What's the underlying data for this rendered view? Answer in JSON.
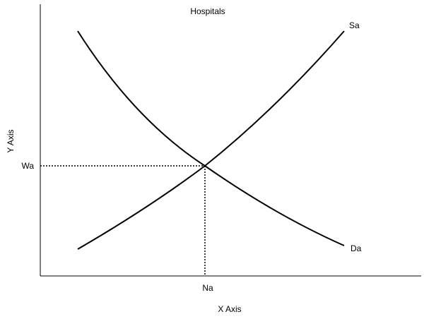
{
  "title": "Hospitals",
  "axes": {
    "x_label": "X Axis",
    "y_label": "Y Axis"
  },
  "equilibrium": {
    "price_label": "Wa",
    "quantity_label": "Na"
  },
  "curves": {
    "supply_label": "Sa",
    "demand_label": "Da"
  }
}
